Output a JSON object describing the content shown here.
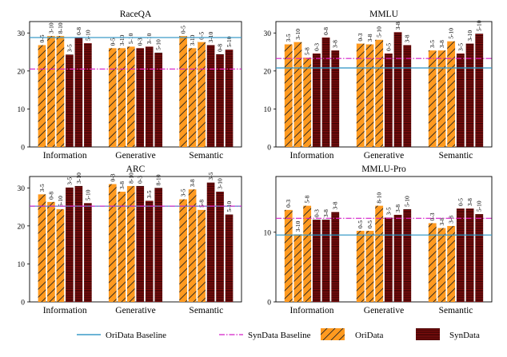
{
  "colors": {
    "oridata": "#ff9a1f",
    "synthdata": "#8b0f0f",
    "ori_baseline": "#3c9bc8",
    "syn_baseline": "#d41cc8"
  },
  "legend": {
    "ori_baseline": "OriData Baseline",
    "syn_baseline": "SynData Baseline",
    "oridata": "OriData",
    "synthdata": "SynData"
  },
  "chart_data": [
    {
      "type": "bar",
      "title": "RaceQA",
      "categories": [
        "Information",
        "Generative",
        "Semantic"
      ],
      "ylim": [
        0,
        33
      ],
      "yticks": [
        0,
        10,
        20,
        30
      ],
      "ori_baseline": 28.8,
      "syn_baseline": 20.5,
      "groups": [
        {
          "ori": [
            {
              "label": "0-5",
              "value": 26.8
            },
            {
              "label": "3-10",
              "value": 29.2
            },
            {
              "label": "8-10",
              "value": 29.2
            }
          ],
          "syn": [
            {
              "label": "3-5",
              "value": 24.3
            },
            {
              "label": "0-8",
              "value": 28.8
            },
            {
              "label": "5-10",
              "value": 27.3
            }
          ]
        },
        {
          "ori": [
            {
              "label": "0-5",
              "value": 26.0
            },
            {
              "label": "3-10",
              "value": 26.0
            },
            {
              "label": "5-10",
              "value": 26.4
            }
          ],
          "syn": [
            {
              "label": "0-3",
              "value": 26.0
            },
            {
              "label": "3-10",
              "value": 26.4
            },
            {
              "label": "5-10",
              "value": 24.8
            }
          ]
        },
        {
          "ori": [
            {
              "label": "0-5",
              "value": 29.2
            },
            {
              "label": "3-10",
              "value": 26.0
            },
            {
              "label": "0-5",
              "value": 27.6
            }
          ],
          "syn": [
            {
              "label": "3-10",
              "value": 26.8
            },
            {
              "label": "0-8",
              "value": 24.4
            },
            {
              "label": "5-10",
              "value": 25.6
            }
          ]
        }
      ]
    },
    {
      "type": "bar",
      "title": "MMLU",
      "categories": [
        "Information",
        "Generative",
        "Semantic"
      ],
      "ylim": [
        0,
        33
      ],
      "yticks": [
        0,
        10,
        20,
        30
      ],
      "ori_baseline": 20.8,
      "syn_baseline": 23.3,
      "groups": [
        {
          "ori": [
            {
              "label": "3-5",
              "value": 27.0
            },
            {
              "label": "3-10",
              "value": 27.6
            },
            {
              "label": "5-8",
              "value": 23.5
            }
          ],
          "syn": [
            {
              "label": "0-3",
              "value": 24.6
            },
            {
              "label": "0-8",
              "value": 28.8
            },
            {
              "label": "3-8",
              "value": 25.4
            }
          ]
        },
        {
          "ori": [
            {
              "label": "0-3",
              "value": 27.2
            },
            {
              "label": "3-8",
              "value": 27.0
            },
            {
              "label": "5-10",
              "value": 28.2
            }
          ],
          "syn": [
            {
              "label": "0-5",
              "value": 24.6
            },
            {
              "label": "3-8",
              "value": 30.2
            },
            {
              "label": "3-8",
              "value": 26.8
            }
          ]
        },
        {
          "ori": [
            {
              "label": "3-5",
              "value": 25.4
            },
            {
              "label": "3-8",
              "value": 25.4
            },
            {
              "label": "5-10",
              "value": 27.8
            }
          ],
          "syn": [
            {
              "label": "3-5",
              "value": 24.6
            },
            {
              "label": "3-10",
              "value": 27.2
            },
            {
              "label": "5-10",
              "value": 29.8
            }
          ]
        }
      ]
    },
    {
      "type": "bar",
      "title": "ARC",
      "categories": [
        "Information",
        "Generative",
        "Semantic"
      ],
      "ylim": [
        0,
        33
      ],
      "yticks": [
        0,
        10,
        20,
        30
      ],
      "ori_baseline": 25.2,
      "syn_baseline": 25.2,
      "groups": [
        {
          "ori": [
            {
              "label": "3-5",
              "value": 28.3
            },
            {
              "label": "0-8",
              "value": 26.3
            },
            {
              "label": "5-10",
              "value": 24.4
            }
          ],
          "syn": [
            {
              "label": "3-5",
              "value": 30.1
            },
            {
              "label": "3-10",
              "value": 30.5
            },
            {
              "label": "5-10",
              "value": 26.0
            }
          ]
        },
        {
          "ori": [
            {
              "label": "0-3",
              "value": 31.0
            },
            {
              "label": "3-8",
              "value": 29.0
            },
            {
              "label": "8-10",
              "value": 30.5
            }
          ],
          "syn": [
            {
              "label": "0-3",
              "value": 30.5
            },
            {
              "label": "3-5",
              "value": 26.6
            },
            {
              "label": "8-10",
              "value": 30.0
            }
          ]
        },
        {
          "ori": [
            {
              "label": "3-5",
              "value": 27.0
            },
            {
              "label": "3-8",
              "value": 29.6
            },
            {
              "label": "5-8",
              "value": 24.2
            }
          ],
          "syn": [
            {
              "label": "3-5",
              "value": 31.4
            },
            {
              "label": "3-10",
              "value": 29.0
            },
            {
              "label": "5-10",
              "value": 23.0
            }
          ]
        }
      ]
    },
    {
      "type": "bar",
      "title": "MMLU-Pro",
      "categories": [
        "Information",
        "Generative",
        "Semantic"
      ],
      "ylim": [
        0,
        18
      ],
      "yticks": [
        0,
        10
      ],
      "ori_baseline": 9.6,
      "syn_baseline": 12.0,
      "groups": [
        {
          "ori": [
            {
              "label": "0-3",
              "value": 13.2
            },
            {
              "label": "3-10",
              "value": 9.7
            },
            {
              "label": "5-8",
              "value": 13.8
            }
          ],
          "syn": [
            {
              "label": "0-3",
              "value": 11.8
            },
            {
              "label": "3-8",
              "value": 11.8
            },
            {
              "label": "3-8",
              "value": 12.9
            }
          ]
        },
        {
          "ori": [
            {
              "label": "0-5",
              "value": 10.2
            },
            {
              "label": "0-5",
              "value": 10.2
            },
            {
              "label": "8-10",
              "value": 13.8
            }
          ],
          "syn": [
            {
              "label": "3-5",
              "value": 12.1
            },
            {
              "label": "3-8",
              "value": 12.5
            },
            {
              "label": "5-10",
              "value": 13.3
            }
          ]
        },
        {
          "ori": [
            {
              "label": "0-3",
              "value": 11.3
            },
            {
              "label": "3-8",
              "value": 10.6
            },
            {
              "label": "3-8",
              "value": 10.9
            }
          ],
          "syn": [
            {
              "label": "0-5",
              "value": 13.4
            },
            {
              "label": "3-8",
              "value": 13.4
            },
            {
              "label": "5-10",
              "value": 12.6
            }
          ]
        }
      ]
    }
  ]
}
